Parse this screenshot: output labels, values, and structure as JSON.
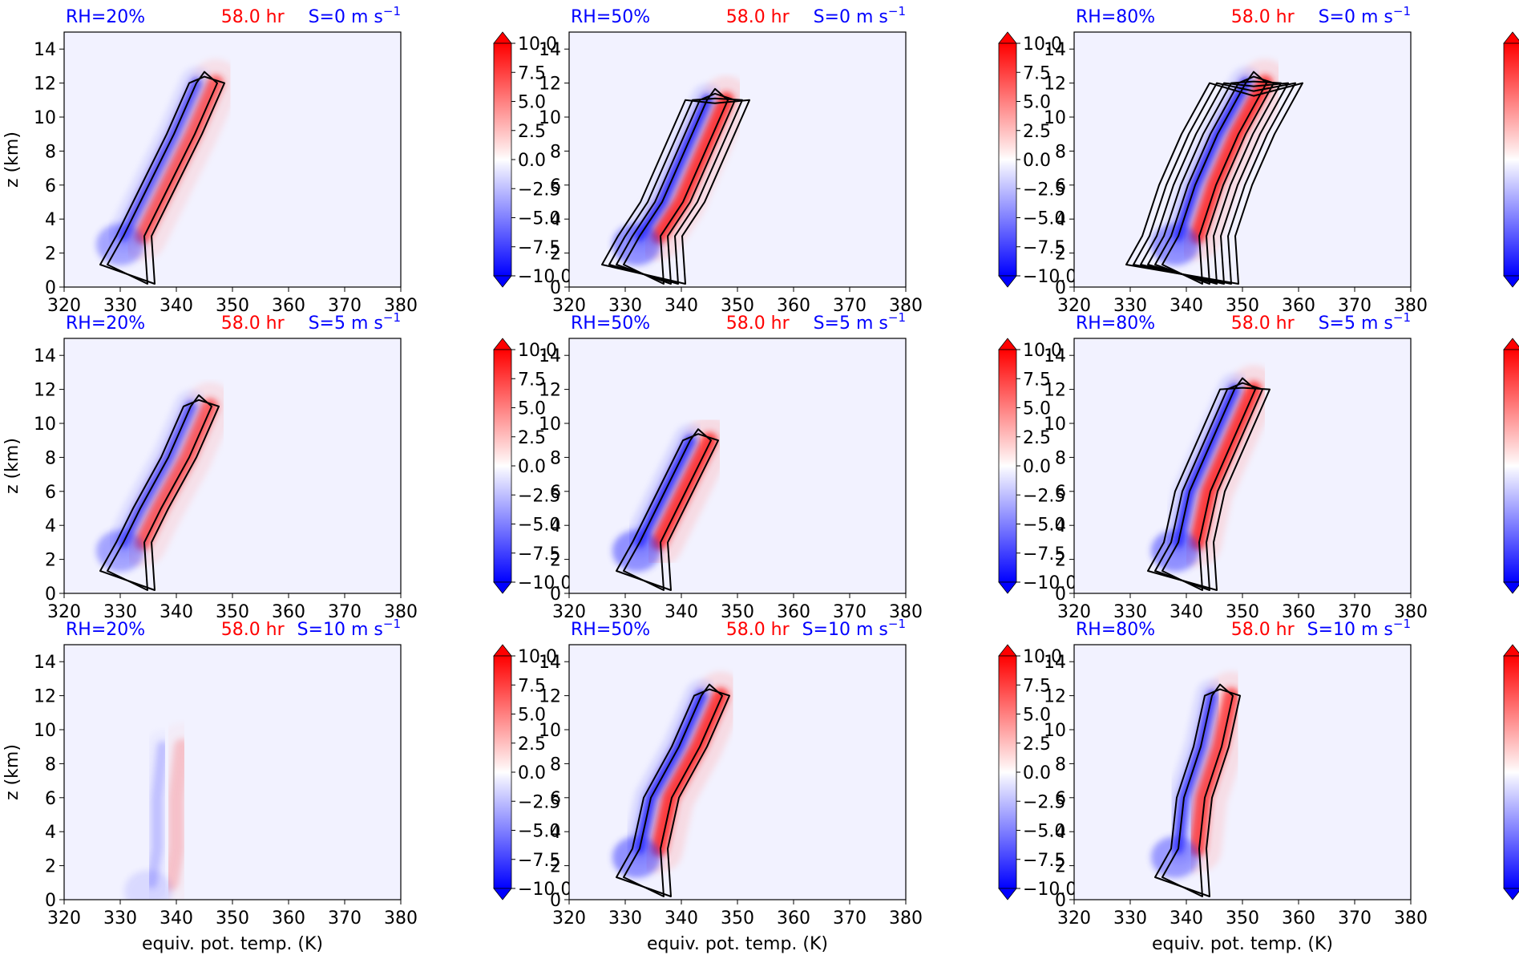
{
  "chart_data": {
    "type": "panel-grid",
    "layout": {
      "rows": 3,
      "cols": 3
    },
    "xlabel": "equiv. pot. temp. (K)",
    "ylabel": "z (km)",
    "xlim": [
      320,
      380
    ],
    "ylim": [
      0,
      15
    ],
    "xticks": [
      "320",
      "330",
      "340",
      "350",
      "360",
      "370",
      "380"
    ],
    "yticks": [
      "0",
      "2",
      "4",
      "6",
      "8",
      "10",
      "12",
      "14"
    ],
    "colorbar": {
      "min": -10.0,
      "max": 10.0,
      "extend": "both",
      "cmap": "bwr",
      "ticks": [
        "10.0",
        "7.5",
        "5.0",
        "2.5",
        "0.0",
        "−2.5",
        "−5.0",
        "−7.5",
        "−10.0"
      ]
    },
    "colors": {
      "title_left": "#0000ff",
      "title_center": "#ff0000",
      "title_right": "#0000ff",
      "contour": "#000000",
      "background": "#f2f2ff"
    },
    "panels": [
      {
        "rh": "RH=20%",
        "time": "58.0 hr",
        "shear": "S=0 m s",
        "shear_exp": "−1",
        "anomaly_strength": 0.8,
        "contour_count": 2,
        "core": [
          [
            332,
            3
          ],
          [
            335,
            5
          ],
          [
            341,
            9
          ],
          [
            345,
            12
          ]
        ]
      },
      {
        "rh": "RH=50%",
        "time": "58.0 hr",
        "shear": "S=0 m s",
        "shear_exp": "−1",
        "anomaly_strength": 1.0,
        "contour_count": 4,
        "core": [
          [
            334,
            3
          ],
          [
            338,
            5
          ],
          [
            342,
            8
          ],
          [
            346,
            11
          ]
        ]
      },
      {
        "rh": "RH=80%",
        "time": "58.0 hr",
        "shear": "S=0 m s",
        "shear_exp": "−1",
        "anomaly_strength": 1.0,
        "contour_count": 6,
        "core": [
          [
            340,
            3
          ],
          [
            343,
            6
          ],
          [
            347,
            9
          ],
          [
            352,
            12
          ]
        ]
      },
      {
        "rh": "RH=20%",
        "time": "58.0 hr",
        "shear": "S=5 m s",
        "shear_exp": "−1",
        "anomaly_strength": 0.8,
        "contour_count": 2,
        "core": [
          [
            332,
            3
          ],
          [
            335,
            5
          ],
          [
            340,
            8
          ],
          [
            344,
            11
          ]
        ]
      },
      {
        "rh": "RH=50%",
        "time": "58.0 hr",
        "shear": "S=5 m s",
        "shear_exp": "−1",
        "anomaly_strength": 1.0,
        "contour_count": 2,
        "core": [
          [
            334,
            3
          ],
          [
            337,
            5
          ],
          [
            340,
            7
          ],
          [
            343,
            9
          ]
        ]
      },
      {
        "rh": "RH=80%",
        "time": "58.0 hr",
        "shear": "S=5 m s",
        "shear_exp": "−1",
        "anomaly_strength": 1.0,
        "contour_count": 3,
        "core": [
          [
            340,
            3
          ],
          [
            342,
            6
          ],
          [
            346,
            9
          ],
          [
            350,
            12
          ]
        ]
      },
      {
        "rh": "RH=20%",
        "time": "58.0 hr",
        "shear": "S=10 m s",
        "shear_exp": "−1",
        "anomaly_strength": 0.25,
        "contour_count": 0,
        "core": [
          [
            337,
            1
          ],
          [
            338,
            3
          ],
          [
            338,
            6
          ],
          [
            339,
            9
          ]
        ]
      },
      {
        "rh": "RH=50%",
        "time": "58.0 hr",
        "shear": "S=10 m s",
        "shear_exp": "−1",
        "anomaly_strength": 1.0,
        "contour_count": 2,
        "core": [
          [
            334,
            3
          ],
          [
            336,
            6
          ],
          [
            341,
            9
          ],
          [
            345,
            12
          ]
        ]
      },
      {
        "rh": "RH=80%",
        "time": "58.0 hr",
        "shear": "S=10 m s",
        "shear_exp": "−1",
        "anomaly_strength": 0.9,
        "contour_count": 2,
        "core": [
          [
            340,
            3
          ],
          [
            341,
            6
          ],
          [
            344,
            9
          ],
          [
            346,
            12
          ]
        ]
      }
    ]
  }
}
